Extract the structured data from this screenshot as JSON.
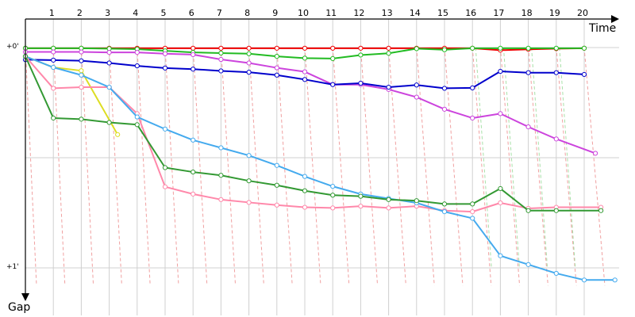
{
  "chart_data": {
    "type": "line",
    "xlabel": "Time",
    "ylabel": "Gap",
    "x_ticks": [
      1,
      2,
      3,
      4,
      5,
      6,
      7,
      8,
      9,
      10,
      11,
      12,
      13,
      14,
      15,
      16,
      17,
      18,
      19,
      20
    ],
    "y_tick_labels": [
      {
        "value": 0,
        "label": "+0'"
      },
      {
        "value": 1,
        "label": "+1'"
      }
    ],
    "xlim": [
      0,
      21.3
    ],
    "ylim": [
      0,
      1.08
    ],
    "grid": true,
    "series": [
      {
        "color": "#ee0000",
        "x": [
          0,
          1,
          2,
          3,
          4,
          5,
          6,
          7,
          8,
          9,
          10,
          11,
          12,
          13,
          14,
          15,
          16,
          17,
          18,
          19,
          20
        ],
        "y": [
          0.003,
          0.003,
          0.003,
          0.003,
          0.003,
          0.003,
          0.003,
          0.003,
          0.003,
          0.003,
          0.003,
          0.003,
          0.003,
          0.003,
          0.003,
          0.003,
          0.003,
          0.012,
          0.008,
          0.005,
          0.003
        ]
      },
      {
        "color": "#22bb22",
        "x": [
          0,
          1,
          2,
          3,
          4,
          5,
          6,
          7,
          8,
          9,
          10,
          11,
          12,
          13,
          14,
          15,
          16,
          17,
          18,
          19,
          20
        ],
        "y": [
          0.003,
          0.003,
          0.003,
          0.005,
          0.007,
          0.015,
          0.022,
          0.025,
          0.028,
          0.04,
          0.048,
          0.05,
          0.034,
          0.026,
          0.005,
          0.01,
          0.003,
          0.003,
          0.003,
          0.003,
          0.003
        ]
      },
      {
        "color": "#cc44dd",
        "x": [
          0,
          1,
          2,
          3,
          4,
          5,
          6,
          7,
          8,
          9,
          10,
          11,
          12,
          13,
          14,
          15,
          16,
          17,
          18,
          19,
          20.4
        ],
        "y": [
          0.02,
          0.02,
          0.02,
          0.022,
          0.022,
          0.028,
          0.032,
          0.054,
          0.07,
          0.092,
          0.11,
          0.168,
          0.168,
          0.19,
          0.225,
          0.28,
          0.32,
          0.3,
          0.36,
          0.415,
          0.48
        ]
      },
      {
        "color": "#0000cc",
        "x": [
          0,
          1,
          2,
          3,
          4,
          5,
          6,
          7,
          8,
          9,
          10,
          11,
          12,
          13,
          14,
          15,
          16,
          17,
          18,
          19,
          20
        ],
        "y": [
          0.055,
          0.057,
          0.06,
          0.07,
          0.083,
          0.093,
          0.098,
          0.106,
          0.112,
          0.125,
          0.145,
          0.168,
          0.162,
          0.18,
          0.17,
          0.185,
          0.183,
          0.108,
          0.114,
          0.114,
          0.122
        ]
      },
      {
        "color": "#dddd22",
        "x": [
          0,
          1,
          2,
          3.3
        ],
        "y": [
          0.04,
          0.09,
          0.105,
          0.395
        ]
      },
      {
        "color": "#ff88aa",
        "x": [
          0,
          1,
          2,
          3,
          4,
          5,
          6,
          7,
          8,
          9,
          10,
          11,
          12,
          13,
          14,
          15,
          16,
          17,
          18,
          19,
          20.6
        ],
        "y": [
          0.04,
          0.185,
          0.18,
          0.18,
          0.3,
          0.632,
          0.665,
          0.69,
          0.703,
          0.715,
          0.725,
          0.728,
          0.72,
          0.728,
          0.72,
          0.74,
          0.745,
          0.705,
          0.73,
          0.725,
          0.725
        ]
      },
      {
        "color": "#44aaee",
        "x": [
          0,
          1,
          2,
          3,
          4,
          5,
          6,
          7,
          8,
          9,
          10,
          11,
          12,
          13,
          14,
          15,
          16,
          17,
          18,
          19,
          20,
          21.1
        ],
        "y": [
          0.04,
          0.09,
          0.125,
          0.18,
          0.315,
          0.37,
          0.42,
          0.455,
          0.49,
          0.535,
          0.585,
          0.63,
          0.665,
          0.685,
          0.705,
          0.745,
          0.775,
          0.945,
          0.985,
          1.025,
          1.055,
          1.055
        ]
      },
      {
        "color": "#339933",
        "x": [
          0,
          1,
          2,
          3,
          4,
          5,
          6,
          7,
          8,
          9,
          10,
          11,
          12,
          13,
          14,
          15,
          16,
          17,
          18,
          19,
          20.6
        ],
        "y": [
          0.04,
          0.32,
          0.325,
          0.34,
          0.35,
          0.545,
          0.565,
          0.58,
          0.605,
          0.625,
          0.65,
          0.67,
          0.675,
          0.69,
          0.695,
          0.71,
          0.71,
          0.64,
          0.74,
          0.74,
          0.74
        ]
      }
    ],
    "pit_lines_note_colors": {
      "red": "#f0a0a0",
      "green": "#a8e0a8"
    }
  }
}
